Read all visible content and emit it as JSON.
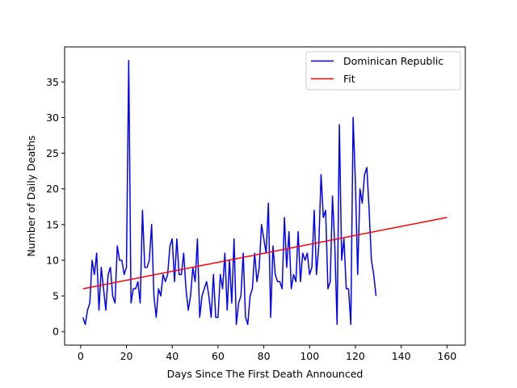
{
  "chart_data": {
    "type": "line",
    "title": "",
    "xlabel": "Days Since The First Death Announced",
    "ylabel": "Number of Daily Deaths",
    "xlim": [
      -7,
      168
    ],
    "ylim": [
      -1.9,
      39.9
    ],
    "xticks": [
      0,
      20,
      40,
      60,
      80,
      100,
      120,
      140,
      160
    ],
    "yticks": [
      0,
      5,
      10,
      15,
      20,
      25,
      30,
      35
    ],
    "grid": false,
    "legend_position": "top-right",
    "series": [
      {
        "name": "Dominican Republic",
        "color": "#0000ff",
        "x": [
          1,
          2,
          3,
          4,
          5,
          6,
          7,
          8,
          9,
          10,
          11,
          12,
          13,
          14,
          15,
          16,
          17,
          18,
          19,
          20,
          21,
          22,
          23,
          24,
          25,
          26,
          27,
          28,
          29,
          30,
          31,
          32,
          33,
          34,
          35,
          36,
          37,
          38,
          39,
          40,
          41,
          42,
          43,
          44,
          45,
          46,
          47,
          48,
          49,
          50,
          51,
          52,
          53,
          54,
          55,
          56,
          57,
          58,
          59,
          60,
          61,
          62,
          63,
          64,
          65,
          66,
          67,
          68,
          69,
          70,
          71,
          72,
          73,
          74,
          75,
          76,
          77,
          78,
          79,
          80,
          81,
          82,
          83,
          84,
          85,
          86,
          87,
          88,
          89,
          90,
          91,
          92,
          93,
          94,
          95,
          96,
          97,
          98,
          99,
          100,
          101,
          102,
          103,
          104,
          105,
          106,
          107,
          108,
          109,
          110,
          111,
          112,
          113,
          114,
          115,
          116,
          117,
          118,
          119,
          120,
          121,
          122,
          123,
          124,
          125,
          126,
          127,
          128,
          129,
          130
        ],
        "values": [
          2,
          1,
          3,
          4,
          10,
          8,
          11,
          3,
          9,
          6,
          3,
          8,
          9,
          5,
          4,
          12,
          10,
          10,
          8,
          9,
          38,
          4,
          6,
          6,
          7,
          4,
          17,
          9,
          9,
          10,
          15,
          5,
          2,
          6,
          5,
          8,
          7,
          8,
          12,
          13,
          7,
          13,
          8,
          8,
          11,
          6,
          3,
          5,
          9,
          7,
          13,
          2,
          5,
          6,
          7,
          5,
          2,
          8,
          2,
          2,
          8,
          6,
          11,
          3,
          10,
          4,
          13,
          1,
          4,
          5,
          11,
          2,
          1,
          5,
          6,
          11,
          7,
          9,
          15,
          13,
          11,
          18,
          2,
          12,
          8,
          7,
          7,
          6,
          16,
          9,
          14,
          6,
          8,
          7,
          14,
          7,
          11,
          10,
          11,
          8,
          9,
          17,
          8,
          12,
          22,
          16,
          17,
          6,
          7,
          19,
          12,
          1,
          29,
          10,
          13,
          6,
          6,
          1,
          30,
          21,
          8,
          20,
          18,
          22,
          23,
          17,
          10,
          8,
          5,
          null
        ],
        "values_trimmed_note": ""
      },
      {
        "name": "Fit",
        "color": "#ff0000",
        "x": [
          1,
          160
        ],
        "values": [
          6.0,
          16.0
        ]
      }
    ]
  }
}
